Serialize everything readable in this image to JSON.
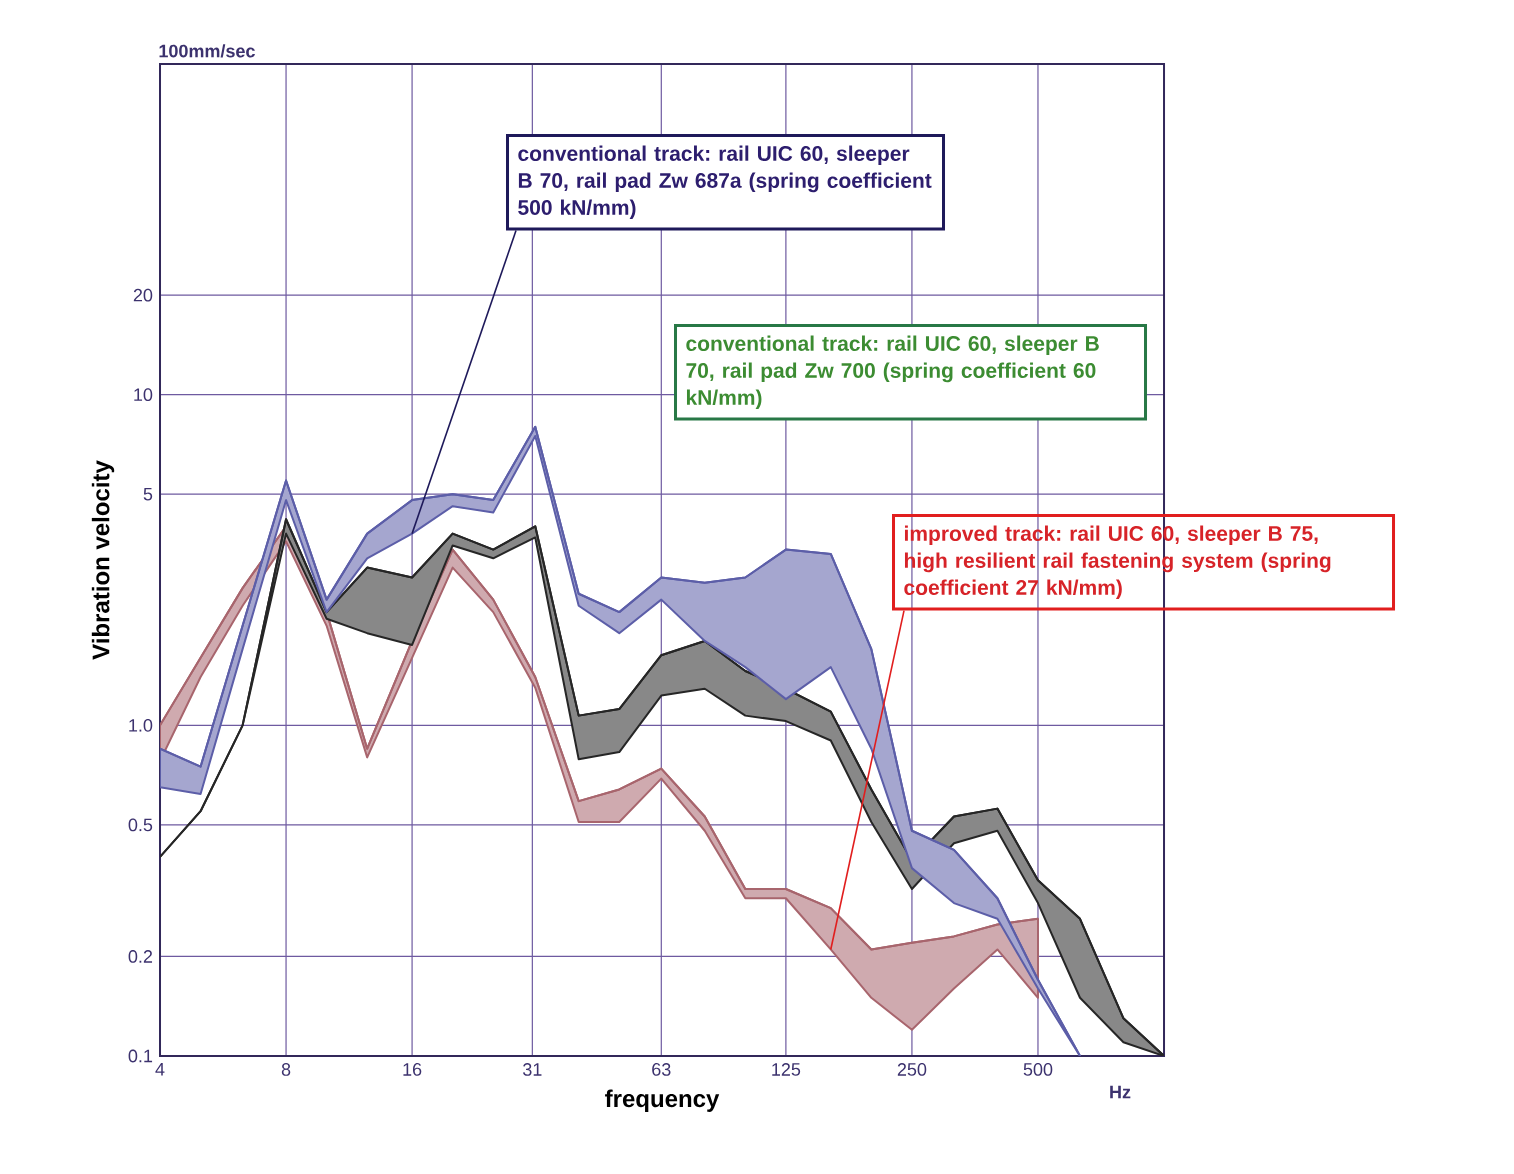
{
  "chart_data": {
    "type": "line",
    "xlabel": "frequency",
    "ylabel": "Vibration velocity",
    "annotations": [
      "100mm/sec",
      "Hz",
      {
        "text": "conventional track: rail UIC 60, sleeper B 70, rail pad Zw 687a (spring coefficient 500 kN/mm)",
        "x": 16,
        "y": 3.8
      },
      "conventional track: rail UIC 60, sleeper B 70, rail pad Zw 700 (spring coefficient 60 kN/mm)",
      {
        "text": "improved track: rail UIC 60, sleeper B 75, high resilient rail fastening system (spring coefficient 27 kN/mm)",
        "x": 160,
        "y": 0.21
      }
    ],
    "log": "xy",
    "grid": true,
    "xlim": [
      4,
      1000
    ],
    "ylim": [
      0.1,
      100
    ],
    "xticks": [
      4,
      8,
      16,
      31,
      63,
      125,
      250,
      500
    ],
    "yticks": [
      0.1,
      0.2,
      0.5,
      {
        "value": 1,
        "label": "1.0"
      },
      5,
      10,
      20
    ],
    "x": [
      4,
      5,
      6.3,
      8,
      10,
      12.5,
      16,
      20,
      25,
      31.5,
      40,
      50,
      63,
      80,
      100,
      125,
      160,
      200,
      250,
      315,
      400,
      500,
      630,
      800,
      1000
    ],
    "series": [
      {
        "color": "#5c5ea8",
        "values": [
          0.85,
          0.75,
          2.0,
          5.5,
          2.4,
          3.8,
          4.8,
          5.0,
          4.8,
          8.0,
          2.5,
          2.2,
          2.8,
          2.7,
          2.8,
          3.4,
          3.3,
          1.7,
          0.48,
          0.42,
          0.3,
          0.17,
          0.1,
          null,
          null
        ],
        "upper": [
          0.85,
          0.75,
          2.0,
          5.5,
          2.4,
          3.8,
          4.8,
          5.0,
          4.8,
          8.0,
          2.5,
          2.2,
          2.8,
          2.7,
          2.8,
          3.4,
          3.3,
          1.7,
          0.48,
          0.42,
          0.3,
          0.17,
          0.1,
          null,
          null
        ],
        "lower": [
          0.65,
          0.62,
          1.7,
          4.8,
          2.2,
          3.2,
          3.8,
          4.6,
          4.4,
          7.5,
          2.3,
          1.9,
          2.4,
          1.8,
          1.5,
          1.2,
          1.5,
          0.85,
          0.37,
          0.29,
          0.26,
          0.16,
          0.1,
          null,
          null
        ]
      },
      {
        "color": "#262626",
        "values": [
          0.4,
          0.55,
          1.0,
          4.2,
          2.2,
          3.0,
          2.8,
          3.8,
          3.4,
          4.0,
          1.07,
          1.12,
          1.63,
          1.8,
          1.46,
          1.29,
          1.1,
          0.64,
          0.39,
          0.53,
          0.56,
          0.34,
          0.26,
          0.13,
          0.1
        ],
        "upper": [
          0.4,
          0.55,
          1.0,
          4.2,
          2.2,
          3.0,
          2.8,
          3.8,
          3.4,
          4.0,
          1.07,
          1.12,
          1.63,
          1.8,
          1.46,
          1.29,
          1.1,
          0.64,
          0.39,
          0.53,
          0.56,
          0.34,
          0.26,
          0.13,
          0.1
        ],
        "lower": [
          0.4,
          0.55,
          1.0,
          3.8,
          2.1,
          1.9,
          1.75,
          3.5,
          3.2,
          3.7,
          0.79,
          0.83,
          1.23,
          1.29,
          1.07,
          1.03,
          0.9,
          0.51,
          0.32,
          0.44,
          0.48,
          0.29,
          0.15,
          0.11,
          0.1
        ]
      },
      {
        "color": "#a8656d",
        "values": [
          1.0,
          1.6,
          2.6,
          4.0,
          2.2,
          0.85,
          1.8,
          3.4,
          2.4,
          1.4,
          0.59,
          0.64,
          0.74,
          0.53,
          0.32,
          0.32,
          0.28,
          0.21,
          0.22,
          0.23,
          0.25,
          0.26,
          null,
          null,
          null
        ],
        "upper": [
          1.0,
          1.6,
          2.6,
          4.0,
          2.2,
          0.85,
          1.8,
          3.4,
          2.4,
          1.4,
          0.59,
          0.64,
          0.74,
          0.53,
          0.32,
          0.32,
          0.28,
          0.21,
          0.22,
          0.23,
          0.25,
          0.26,
          null,
          null,
          null
        ],
        "lower": [
          0.78,
          1.4,
          2.3,
          3.6,
          2.0,
          0.8,
          1.6,
          3.0,
          2.2,
          1.3,
          0.51,
          0.51,
          0.69,
          0.48,
          0.3,
          0.3,
          0.21,
          0.15,
          0.12,
          0.16,
          0.21,
          0.15,
          null,
          null,
          null
        ]
      }
    ]
  }
}
